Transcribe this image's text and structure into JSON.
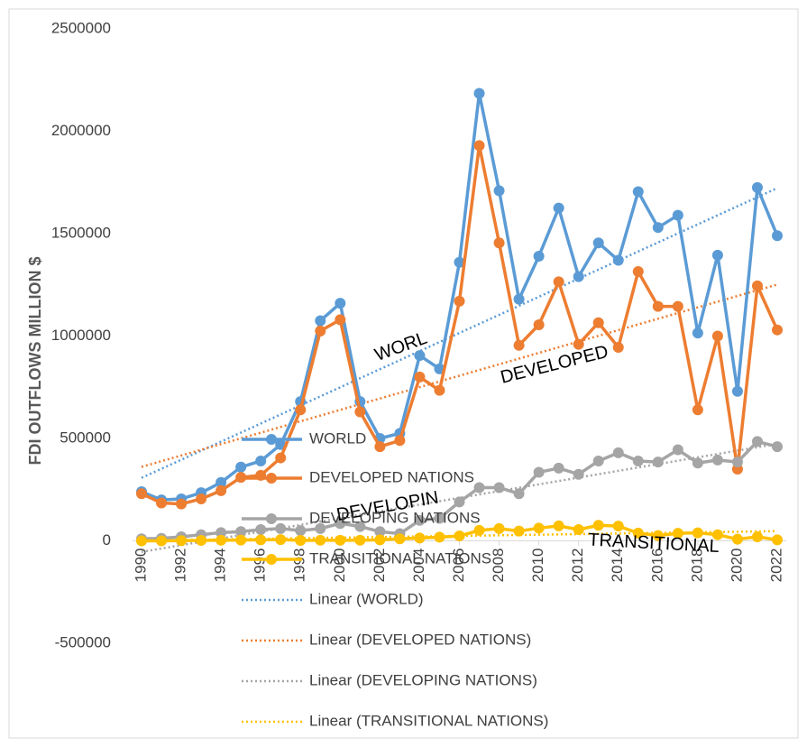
{
  "chart_data": {
    "type": "line",
    "y_axis_label": "FDI OUTFLOWS MILLION $",
    "x": [
      1990,
      1991,
      1992,
      1993,
      1994,
      1995,
      1996,
      1997,
      1998,
      1999,
      2000,
      2001,
      2002,
      2003,
      2004,
      2005,
      2006,
      2007,
      2008,
      2009,
      2010,
      2011,
      2012,
      2013,
      2014,
      2015,
      2016,
      2017,
      2018,
      2019,
      2020,
      2021,
      2022
    ],
    "xlim": [
      1990,
      2022
    ],
    "xticks": [
      1990,
      1992,
      1994,
      1996,
      1998,
      2000,
      2002,
      2004,
      2006,
      2008,
      2010,
      2012,
      2014,
      2016,
      2018,
      2020,
      2022
    ],
    "ylim": [
      -500000,
      2500000
    ],
    "yticks": [
      -500000,
      0,
      500000,
      1000000,
      1500000,
      2000000,
      2500000
    ],
    "series": [
      {
        "name": "WORLD",
        "color": "#5b9bd5",
        "values": [
          240000,
          200000,
          205000,
          235000,
          285000,
          360000,
          390000,
          470000,
          680000,
          1075000,
          1160000,
          680000,
          500000,
          525000,
          905000,
          840000,
          1360000,
          2185000,
          1710000,
          1180000,
          1390000,
          1625000,
          1290000,
          1455000,
          1370000,
          1705000,
          1530000,
          1590000,
          1015000,
          1395000,
          730000,
          1725000,
          1490000
        ]
      },
      {
        "name": "DEVELOPED NATIONS",
        "color": "#ed7d31",
        "values": [
          230000,
          185000,
          180000,
          205000,
          245000,
          310000,
          320000,
          405000,
          640000,
          1025000,
          1080000,
          630000,
          460000,
          490000,
          800000,
          735000,
          1170000,
          1930000,
          1455000,
          955000,
          1055000,
          1265000,
          960000,
          1065000,
          945000,
          1315000,
          1145000,
          1145000,
          640000,
          1000000,
          350000,
          1245000,
          1030000
        ]
      },
      {
        "name": "DEVELOPING NATIONS",
        "color": "#a5a5a5",
        "values": [
          10000,
          12000,
          20000,
          30000,
          40000,
          45000,
          55000,
          60000,
          50000,
          60000,
          85000,
          70000,
          45000,
          35000,
          100000,
          110000,
          190000,
          260000,
          260000,
          230000,
          335000,
          355000,
          325000,
          390000,
          430000,
          390000,
          385000,
          445000,
          380000,
          395000,
          385000,
          485000,
          460000
        ]
      },
      {
        "name": "TRANSITIONAL NATIONS",
        "color": "#ffc000",
        "values": [
          0,
          0,
          1000,
          2000,
          3000,
          4000,
          5000,
          6000,
          2000,
          3000,
          3000,
          3000,
          5000,
          10000,
          14000,
          18000,
          24000,
          51000,
          60000,
          48000,
          62000,
          73000,
          55000,
          76000,
          72000,
          38000,
          26000,
          37000,
          39000,
          30000,
          8000,
          20000,
          5000
        ]
      }
    ],
    "trendline_legend": [
      "Linear (WORLD)",
      "Linear (DEVELOPED NATIONS)",
      "Linear (DEVELOPING NATIONS)",
      "Linear (TRANSITIONAL NATIONS)"
    ],
    "annotations": [
      "WORL",
      "DEVELOPED",
      "DEVELOPIN",
      "TRANSITIONAL"
    ]
  }
}
